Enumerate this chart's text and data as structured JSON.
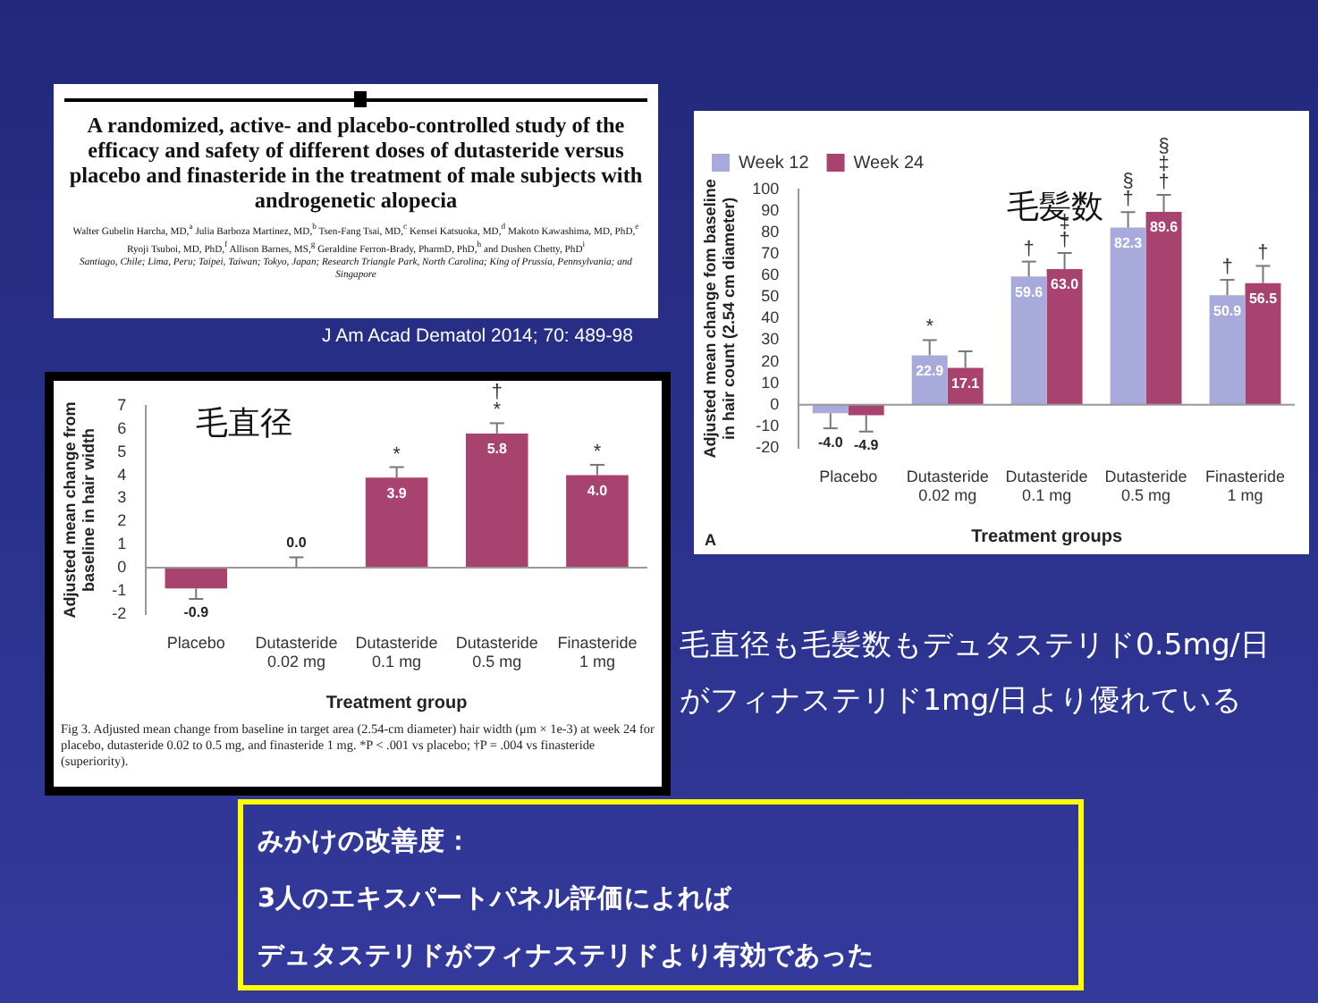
{
  "chart_data": [
    {
      "type": "other",
      "title": "A randomized, active- and placebo-controlled study of the efficacy and safety of different doses of dutasteride versus placebo and finasteride in the treatment of male subjects with androgenetic alopecia",
      "annotations": [
        "Walter Gubelin Harcha, MD,$^{a}$ Julia Barboza Martinez, MD,$^{b}$ Tsen-Fang Tsai, MD,$^{c}$ Kensei Katsuoka, MD,$^{d}$ Makoto Kawashima, MD, PhD,$^{e}$ Ryoji Tsuboi, MD, PhD,$^{f}$ Allison Barnes, MS,$^{g}$ Geraldine Ferron-Brady, PharmD, PhD,$^{h}$ and Dushen Chetty, PhD$^{i}$",
        "Santiago, Chile; Lima, Peru; Taipei, Taiwan; Tokyo, Japan; Research Triangle Park, North Carolina; King of Prussia, Pennsylvania; and Singapore",
        "J Am Acad Dematol 2014; 70: 489-98"
      ]
    },
    {
      "type": "bar",
      "title": "毛髪数",
      "xlabel": "Treatment groups",
      "ylabel": "Adjusted mean change fom baseline in hair count (2.54 cm diameter)",
      "categories": [
        "Placebo",
        "Dutasteride 0.02 mg",
        "Dutasteride 0.1 mg",
        "Dutasteride 0.5 mg",
        "Finasteride 1 mg"
      ],
      "series": [
        {
          "name": "Week 12",
          "color": "#a9aadc",
          "values": [
            -4.0,
            22.9,
            59.6,
            82.3,
            50.9
          ],
          "value_labels": [
            "-4.0",
            "22.9",
            "59.6",
            "82.3",
            "50.9"
          ],
          "errors": [
            [
              -11,
              -4.0
            ],
            [
              22.9,
              30
            ],
            [
              59.6,
              66.5
            ],
            [
              82.3,
              89.5
            ],
            [
              50.9,
              58
            ]
          ]
        },
        {
          "name": "Week 24",
          "color": "#a8426f",
          "values": [
            -4.9,
            17.1,
            63.0,
            89.6,
            56.5
          ],
          "value_labels": [
            "-4.9",
            "17.1",
            "63.0",
            "89.6",
            "56.5"
          ],
          "errors": [
            [
              -12.5,
              -4.9
            ],
            [
              17.1,
              24.8
            ],
            [
              63.0,
              70.5
            ],
            [
              89.6,
              97.5
            ],
            [
              56.5,
              64.5
            ]
          ]
        }
      ],
      "ylim": [
        -20,
        100
      ],
      "yticks": [
        -20,
        -10,
        0,
        10,
        20,
        30,
        40,
        50,
        60,
        70,
        80,
        90,
        100
      ],
      "grid": false,
      "legend": "top left",
      "ref_lines": [
        {
          "axis": "y",
          "value": 0,
          "color": "#999999"
        }
      ],
      "annotations": [
        "*",
        "†",
        "†",
        "‡",
        "†",
        "§",
        "†",
        "‡",
        "§",
        "†",
        "†",
        "A"
      ]
    },
    {
      "type": "bar",
      "title": "毛直径",
      "xlabel": "Treatment group",
      "ylabel": "Adjusted mean change from baseline in hair width",
      "categories": [
        "Placebo",
        "Dutasteride 0.02 mg",
        "Dutasteride 0.1 mg",
        "Dutasteride 0.5 mg",
        "Finasteride 1 mg"
      ],
      "series": [
        {
          "color": "#a8426f",
          "values": [
            -0.9,
            0.0,
            3.9,
            5.8,
            4.0
          ],
          "value_labels": [
            "-0.9",
            "0.0",
            "3.9",
            "5.8",
            "4.0"
          ],
          "errors": [
            [
              -1.35,
              -0.9
            ],
            [
              0.0,
              0.45
            ],
            [
              3.9,
              4.35
            ],
            [
              5.8,
              6.25
            ],
            [
              4.0,
              4.45
            ]
          ]
        }
      ],
      "ylim": [
        -2,
        7
      ],
      "yticks": [
        -2,
        -1,
        0,
        1,
        2,
        3,
        4,
        5,
        6,
        7
      ],
      "grid": false,
      "legend": false,
      "ref_lines": [
        {
          "axis": "y",
          "value": 0,
          "color": "#999999"
        }
      ],
      "annotations": [
        "*",
        "*",
        "†",
        "*",
        "Fig 3. Adjusted mean change from baseline in target area (2.54-cm diameter) hair width (μm × 1e-3) at week 24 for placebo, dutasteride 0.02 to 0.5 mg, and finasteride 1 mg. *P < .001 vs placebo; †P = .004 vs finasteride (superiority)."
      ]
    },
    {
      "type": "other",
      "annotations": [
        "毛直径も毛髪数もデュタステリド0.5mg/日がフィナステリド1mg/日より優れている"
      ]
    },
    {
      "type": "other",
      "title": "みかけの改善度：",
      "annotations": [
        "3人のエキスパートパネル評価によれば",
        "デュタステリドがフィナステリドより有効であった"
      ]
    }
  ]
}
